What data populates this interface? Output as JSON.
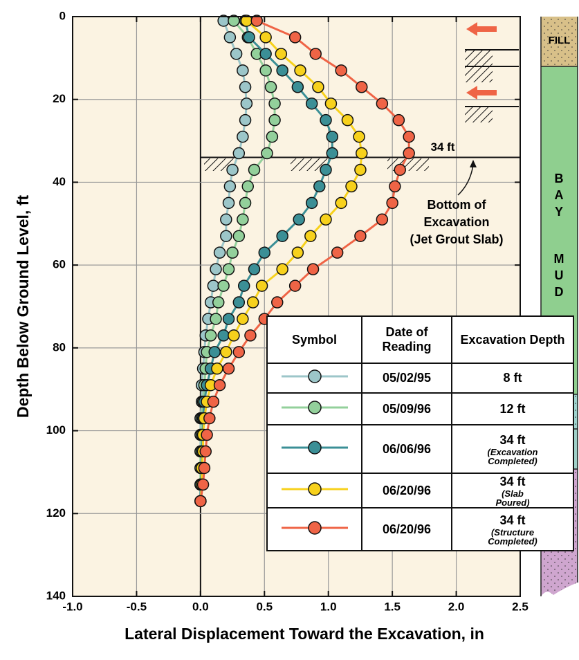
{
  "chart_data": {
    "type": "line",
    "x_label": "Lateral Displacement Toward the Excavation, in",
    "y_label": "Depth Below Ground Level, ft",
    "y": [
      1,
      5,
      9,
      13,
      17,
      21,
      25,
      29,
      33,
      37,
      41,
      45,
      49,
      53,
      57,
      61,
      65,
      69,
      73,
      77,
      81,
      85,
      89,
      93,
      97,
      101,
      105,
      109,
      113,
      117
    ],
    "xlim": [
      -1.0,
      2.5
    ],
    "ylim": [
      0,
      140
    ],
    "xticks": [
      {
        "value": -1.0,
        "label": "-1.0"
      },
      -0.5,
      {
        "value": 0.0,
        "label": "0.0"
      },
      0.5,
      {
        "value": 1.0,
        "label": "1.0"
      },
      1.5,
      {
        "value": 2.0,
        "label": "2.0"
      },
      2.5
    ],
    "yticks": [
      0,
      20,
      40,
      60,
      80,
      100,
      120,
      140
    ],
    "grid": true,
    "y_inverted": true,
    "series": [
      {
        "name": "05/02/95",
        "color": "#9cc6c9",
        "depth_label": "8 ft",
        "values": [
          0.18,
          0.23,
          0.28,
          0.33,
          0.35,
          0.36,
          0.35,
          0.33,
          0.3,
          0.25,
          0.23,
          0.22,
          0.2,
          0.2,
          0.15,
          0.12,
          0.1,
          0.08,
          0.06,
          0.04,
          0.03,
          0.02,
          0.01,
          0.01,
          0,
          0,
          0,
          0,
          0,
          0
        ]
      },
      {
        "name": "05/09/96",
        "color": "#93d09b",
        "depth_label": "12 ft",
        "values": [
          0.26,
          0.37,
          0.44,
          0.51,
          0.55,
          0.58,
          0.58,
          0.56,
          0.52,
          0.42,
          0.37,
          0.35,
          0.33,
          0.3,
          0.25,
          0.22,
          0.18,
          0.14,
          0.12,
          0.08,
          0.05,
          0.04,
          0.03,
          0.02,
          0.01,
          0.01,
          0,
          0,
          0,
          0
        ]
      },
      {
        "name": "06/06/96",
        "color": "#3b8f96",
        "depth_label": "34 ft",
        "note": [
          "(Excavation",
          "Completed)"
        ],
        "values": [
          0.35,
          0.38,
          0.51,
          0.64,
          0.76,
          0.87,
          0.98,
          1.03,
          1.03,
          0.98,
          0.93,
          0.87,
          0.77,
          0.64,
          0.5,
          0.42,
          0.34,
          0.3,
          0.22,
          0.18,
          0.11,
          0.08,
          0.05,
          0.03,
          0.02,
          0.02,
          0.01,
          0.01,
          0,
          0
        ]
      },
      {
        "name": "06/20/96",
        "color": "#f7d11c",
        "depth_label": "34 ft",
        "note": [
          "(Slab",
          "Poured)"
        ],
        "values": [
          0.36,
          0.51,
          0.63,
          0.78,
          0.92,
          1.02,
          1.15,
          1.24,
          1.26,
          1.25,
          1.18,
          1.1,
          0.98,
          0.86,
          0.76,
          0.64,
          0.48,
          0.41,
          0.33,
          0.26,
          0.2,
          0.13,
          0.08,
          0.05,
          0.03,
          0.02,
          0.02,
          0.01,
          0.01,
          0
        ]
      },
      {
        "name": "06/20/96",
        "color": "#ef6446",
        "depth_label": "34 ft",
        "note": [
          "(Structure",
          "Completed)"
        ],
        "values": [
          0.44,
          0.74,
          0.9,
          1.1,
          1.26,
          1.42,
          1.55,
          1.63,
          1.63,
          1.56,
          1.52,
          1.5,
          1.42,
          1.25,
          1.07,
          0.88,
          0.74,
          0.6,
          0.5,
          0.39,
          0.3,
          0.22,
          0.15,
          0.1,
          0.07,
          0.05,
          0.04,
          0.03,
          0.02,
          0
        ]
      }
    ],
    "legend_headers": [
      "Symbol",
      "Date of Reading",
      "Excavation Depth"
    ],
    "excavation_depth": 34,
    "excavation_label": "34 ft",
    "annotation": [
      "Bottom of",
      "Excavation",
      "(Jet Grout Slab)"
    ],
    "soil_labels": [
      "FILL",
      "BAY",
      "MUD"
    ]
  }
}
